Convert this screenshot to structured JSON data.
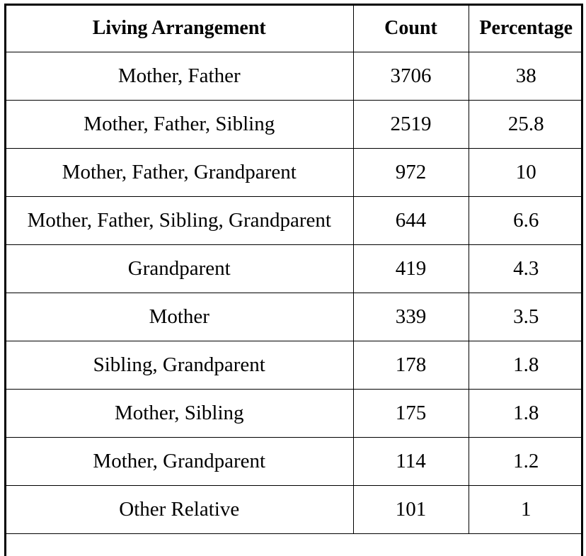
{
  "table": {
    "headers": [
      "Living Arrangement",
      "Count",
      "Percentage"
    ],
    "rows": [
      [
        "Mother, Father",
        "3706",
        "38"
      ],
      [
        "Mother, Father, Sibling",
        "2519",
        "25.8"
      ],
      [
        "Mother, Father, Grandparent",
        "972",
        "10"
      ],
      [
        "Mother, Father, Sibling, Grandparent",
        "644",
        "6.6"
      ],
      [
        "Grandparent",
        "419",
        "4.3"
      ],
      [
        "Mother",
        "339",
        "3.5"
      ],
      [
        "Sibling, Grandparent",
        "178",
        "1.8"
      ],
      [
        "Mother, Sibling",
        "175",
        "1.8"
      ],
      [
        "Mother, Grandparent",
        "114",
        "1.2"
      ],
      [
        "Other Relative",
        "101",
        "1"
      ]
    ]
  }
}
